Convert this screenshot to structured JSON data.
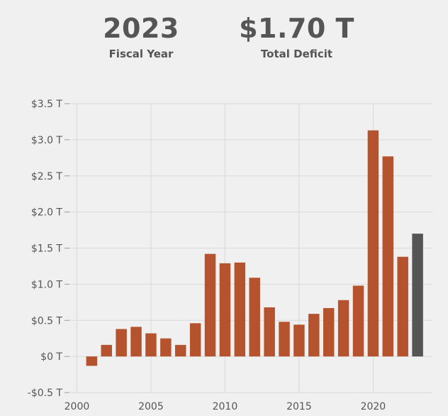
{
  "summary": {
    "year_value": "2023",
    "year_label": "Fiscal Year",
    "deficit_value": "$1.70 T",
    "deficit_label": "Total Deficit"
  },
  "chart_data": {
    "type": "bar",
    "title": "",
    "xlabel": "",
    "ylabel": "",
    "ylim": [
      -0.5,
      3.5
    ],
    "xlim": [
      1999.5,
      2024
    ],
    "grid": true,
    "y_ticks": [
      {
        "value": -0.5,
        "label": "-$0.5 T"
      },
      {
        "value": 0,
        "label": "$0 T"
      },
      {
        "value": 0.5,
        "label": "$0.5 T"
      },
      {
        "value": 1.0,
        "label": "$1.0 T"
      },
      {
        "value": 1.5,
        "label": "$1.5 T"
      },
      {
        "value": 2.0,
        "label": "$2.0 T"
      },
      {
        "value": 2.5,
        "label": "$2.5 T"
      },
      {
        "value": 3.0,
        "label": "$3.0 T"
      },
      {
        "value": 3.5,
        "label": "$3.5 T"
      }
    ],
    "x_ticks": [
      {
        "value": 2000,
        "label": "2000"
      },
      {
        "value": 2005,
        "label": "2005"
      },
      {
        "value": 2010,
        "label": "2010"
      },
      {
        "value": 2015,
        "label": "2015"
      },
      {
        "value": 2020,
        "label": "2020"
      }
    ],
    "categories": [
      2001,
      2002,
      2003,
      2004,
      2005,
      2006,
      2007,
      2008,
      2009,
      2010,
      2011,
      2012,
      2013,
      2014,
      2015,
      2016,
      2017,
      2018,
      2019,
      2020,
      2021,
      2022,
      2023
    ],
    "values": [
      -0.13,
      0.16,
      0.38,
      0.41,
      0.32,
      0.25,
      0.16,
      0.46,
      1.42,
      1.29,
      1.3,
      1.09,
      0.68,
      0.48,
      0.44,
      0.59,
      0.67,
      0.78,
      0.98,
      3.13,
      2.77,
      1.38,
      1.7
    ],
    "highlight": 2023,
    "colors": {
      "bar": "#b5532e",
      "highlight": "#555555",
      "grid": "#d9d9d9",
      "text": "#555555"
    }
  }
}
